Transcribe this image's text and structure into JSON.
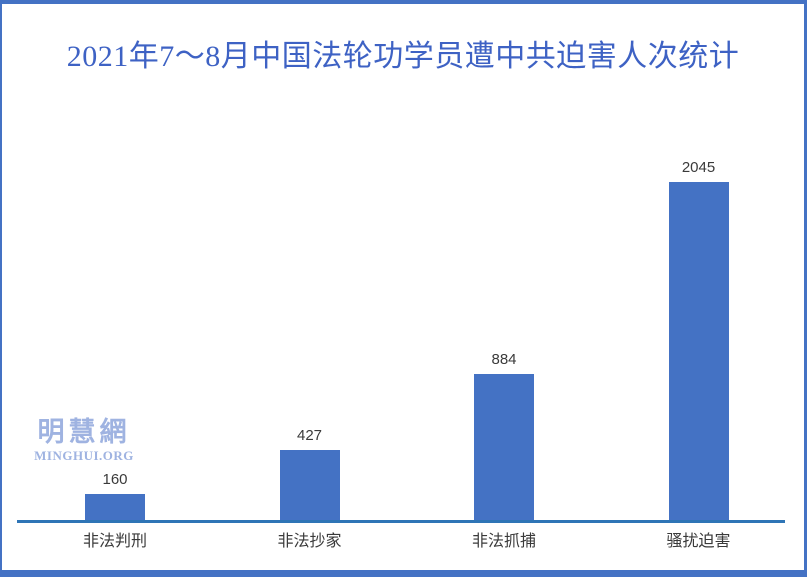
{
  "title": {
    "text": "2021年7～8月中国法轮功学员遭中共迫害人次统计",
    "color": "#3E62C4"
  },
  "watermark": {
    "cjk": "明慧網",
    "latin": "MINGHUI.ORG",
    "color": "#9FB3E1"
  },
  "frame": {
    "border_color": "#4472C4"
  },
  "chart_data": {
    "type": "bar",
    "title": "2021年7～8月中国法轮功学员遭中共迫害人次统计",
    "categories": [
      "非法判刑",
      "非法抄家",
      "非法抓捕",
      "骚扰迫害"
    ],
    "values": [
      160,
      427,
      884,
      2045
    ],
    "data_labels": [
      "160",
      "427",
      "884",
      "2045"
    ],
    "xlabel": "",
    "ylabel": "",
    "ylim": [
      0,
      2100
    ],
    "grid": false,
    "legend": false,
    "bar_color": "#4472C4",
    "axis_line_color": "#2E75B6",
    "text_color": "#3A3A3A"
  }
}
